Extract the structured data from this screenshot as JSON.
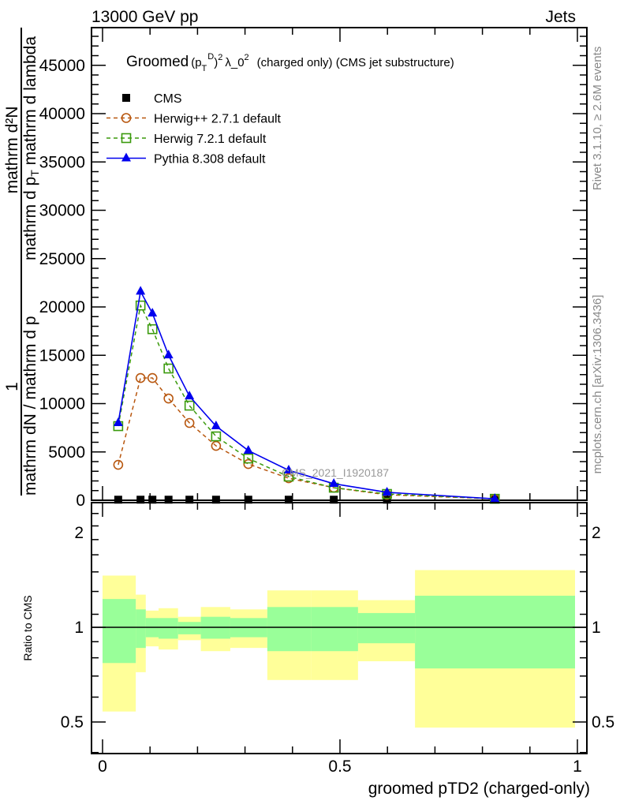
{
  "header": {
    "left": "13000 GeV pp",
    "right": "Jets"
  },
  "side_labels": {
    "rivet": "Rivet 3.1.10, ≥ 2.6M events",
    "mcplots": "mcplots.cern.ch [arXiv:1306.3436]"
  },
  "watermark": "CMS_2021_I1920187",
  "chart_data": [
    {
      "type": "line",
      "title": {
        "prefix": "Groomed",
        "formula_base": "(p",
        "formula_sub": "T",
        "formula_sup": "D",
        "formula_rest": ")",
        "sq": "2",
        "lambda": "λ_0",
        "sq2": "2",
        "suffix": "(charged only) (CMS jet substructure)"
      },
      "ylabel": {
        "one": "1",
        "dN_over": "mathrm dN / mathrm d p",
        "d2N": "mathrm d²N",
        "denom": "mathrm d p",
        "T": "T",
        "denom_rest": "mathrm d lambda"
      },
      "xlim": [
        0,
        1
      ],
      "ylim": [
        0,
        48900
      ],
      "yticks": [
        0,
        5000,
        10000,
        15000,
        20000,
        25000,
        30000,
        35000,
        40000,
        45000
      ],
      "ytick_labels": [
        "0",
        "5000",
        "10000",
        "15000",
        "20000",
        "25000",
        "30000",
        "35000",
        "40000",
        "45000"
      ],
      "x": [
        0.033,
        0.08,
        0.105,
        0.139,
        0.183,
        0.239,
        0.307,
        0.392,
        0.487,
        0.599,
        0.826
      ],
      "series": [
        {
          "name": "CMS",
          "color": "#000000",
          "marker": "square-filled",
          "values": [
            60,
            60,
            60,
            60,
            60,
            60,
            60,
            60,
            60,
            60,
            60
          ]
        },
        {
          "name": "Herwig++ 2.7.1 default",
          "color": "#b8570f",
          "marker": "circle-open",
          "dash": true,
          "values": [
            3670,
            12650,
            12650,
            10530,
            8000,
            5630,
            3750,
            2280,
            1300,
            570,
            150
          ]
        },
        {
          "name": "Herwig 7.2.1 default",
          "color": "#3a9a0c",
          "marker": "square-open",
          "dash": true,
          "values": [
            7670,
            20150,
            17700,
            13630,
            9790,
            6610,
            4320,
            2450,
            1300,
            650,
            150
          ]
        },
        {
          "name": "Pythia 8.308 default",
          "color": "#0000ee",
          "marker": "triangle-filled",
          "dash": false,
          "values": [
            8000,
            21600,
            19340,
            15010,
            10770,
            7670,
            5140,
            3100,
            1710,
            820,
            150
          ]
        }
      ],
      "legend_position": "top-left"
    },
    {
      "type": "area",
      "ylabel": "Ratio to CMS",
      "xlabel": "groomed pTD2 (charged-only)",
      "yscale": "log",
      "ylim": [
        0.397,
        2.49
      ],
      "yticks": [
        0.5,
        1,
        2
      ],
      "ytick_labels": [
        "0.5",
        "1",
        "2"
      ],
      "xticks": [
        0,
        0.5,
        1
      ],
      "xtick_labels": [
        "0",
        "0.5",
        "1"
      ],
      "bin_edges": [
        0,
        0.07,
        0.091,
        0.118,
        0.159,
        0.207,
        0.269,
        0.347,
        0.439,
        0.538,
        0.658,
        0.995
      ],
      "band_total": {
        "color": "#ffff99",
        "lo": [
          0.54,
          0.72,
          0.87,
          0.85,
          0.91,
          0.84,
          0.86,
          0.68,
          0.68,
          0.78,
          0.48
        ],
        "hi": [
          1.46,
          1.27,
          1.13,
          1.15,
          1.08,
          1.16,
          1.14,
          1.31,
          1.31,
          1.22,
          1.52
        ]
      },
      "band_stat": {
        "color": "#99ff99",
        "lo": [
          0.77,
          0.86,
          0.93,
          0.92,
          0.95,
          0.92,
          0.93,
          0.84,
          0.84,
          0.89,
          0.74
        ],
        "hi": [
          1.23,
          1.14,
          1.07,
          1.07,
          1.04,
          1.08,
          1.07,
          1.16,
          1.16,
          1.11,
          1.26
        ]
      }
    }
  ]
}
